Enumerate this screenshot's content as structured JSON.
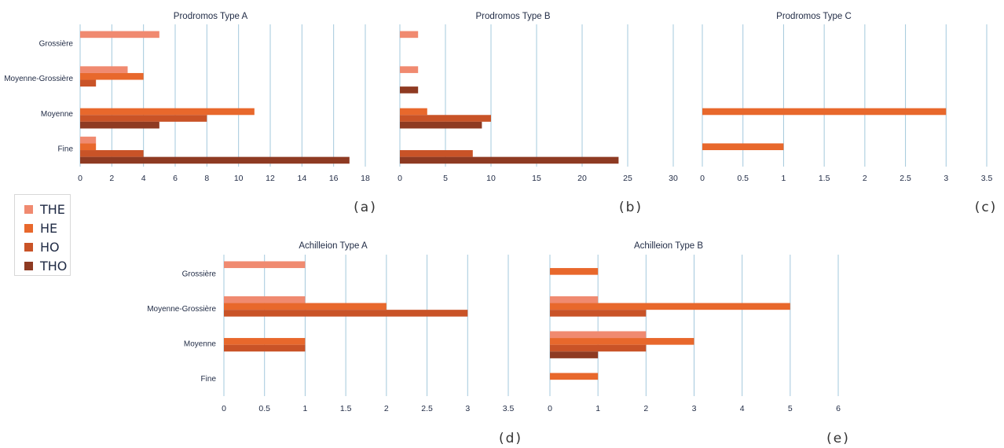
{
  "series_colors": {
    "THE": "#f08a70",
    "HE": "#e8682c",
    "HO": "#c95327",
    "THO": "#8e3a22"
  },
  "gridline_color": "#a3c8dc",
  "legend": {
    "placement": "left",
    "items": [
      {
        "label": "THE",
        "color": "#f08a70"
      },
      {
        "label": "HE",
        "color": "#e8682c"
      },
      {
        "label": "HO",
        "color": "#c95327"
      },
      {
        "label": "THO",
        "color": "#8e3a22"
      }
    ]
  },
  "chart_data": [
    {
      "type": "bar",
      "orientation": "horizontal",
      "title": "Prodromos Type A",
      "panel_label": "(a)",
      "categories": [
        "Grossière",
        "Moyenne-Grossière",
        "Moyenne",
        "Fine"
      ],
      "xticks": [
        "0",
        "2",
        "4",
        "6",
        "8",
        "10",
        "12",
        "14",
        "16",
        "18"
      ],
      "xlim": [
        0,
        18
      ],
      "grid": true,
      "series": [
        {
          "name": "THE",
          "values": [
            5,
            3,
            0,
            1
          ]
        },
        {
          "name": "HE",
          "values": [
            0,
            4,
            11,
            1
          ]
        },
        {
          "name": "HO",
          "values": [
            0,
            1,
            8,
            4
          ]
        },
        {
          "name": "THO",
          "values": [
            0,
            0,
            5,
            17
          ]
        }
      ]
    },
    {
      "type": "bar",
      "orientation": "horizontal",
      "title": "Prodromos Type B",
      "panel_label": "(b)",
      "categories": [
        "Grossière",
        "Moyenne-Grossière",
        "Moyenne",
        "Fine"
      ],
      "xticks": [
        "0",
        "5",
        "10",
        "15",
        "20",
        "25",
        "30"
      ],
      "xlim": [
        0,
        30
      ],
      "grid": true,
      "series": [
        {
          "name": "THE",
          "values": [
            2,
            2,
            0,
            0
          ]
        },
        {
          "name": "HE",
          "values": [
            0,
            0,
            3,
            0
          ]
        },
        {
          "name": "HO",
          "values": [
            0,
            0,
            10,
            8
          ]
        },
        {
          "name": "THO",
          "values": [
            0,
            2,
            9,
            24
          ]
        }
      ]
    },
    {
      "type": "bar",
      "orientation": "horizontal",
      "title": "Prodromos Type C",
      "panel_label": "(c)",
      "categories": [
        "Grossière",
        "Moyenne-Grossière",
        "Moyenne",
        "Fine"
      ],
      "xticks": [
        "0",
        "0.5",
        "1",
        "1.5",
        "2",
        "2.5",
        "3",
        "3.5"
      ],
      "xlim": [
        0,
        3.5
      ],
      "grid": true,
      "series": [
        {
          "name": "THE",
          "values": [
            0,
            0,
            0,
            0
          ]
        },
        {
          "name": "HE",
          "values": [
            0,
            0,
            3,
            1
          ]
        },
        {
          "name": "HO",
          "values": [
            0,
            0,
            0,
            0
          ]
        },
        {
          "name": "THO",
          "values": [
            0,
            0,
            0,
            0
          ]
        }
      ]
    },
    {
      "type": "bar",
      "orientation": "horizontal",
      "title": "Achilleion Type A",
      "panel_label": "(d)",
      "categories": [
        "Grossière",
        "Moyenne-Grossière",
        "Moyenne",
        "Fine"
      ],
      "xticks": [
        "0",
        "0.5",
        "1",
        "1.5",
        "2",
        "2.5",
        "3",
        "3.5"
      ],
      "xlim": [
        0,
        3.5
      ],
      "grid": true,
      "series": [
        {
          "name": "THE",
          "values": [
            1,
            1,
            0,
            0
          ]
        },
        {
          "name": "HE",
          "values": [
            0,
            2,
            1,
            0
          ]
        },
        {
          "name": "HO",
          "values": [
            0,
            3,
            1,
            0
          ]
        },
        {
          "name": "THO",
          "values": [
            0,
            0,
            0,
            0
          ]
        }
      ]
    },
    {
      "type": "bar",
      "orientation": "horizontal",
      "title": "Achilleion Type B",
      "panel_label": "(e)",
      "categories": [
        "Grossière",
        "Moyenne-Grossière",
        "Moyenne",
        "Fine"
      ],
      "xticks": [
        "0",
        "1",
        "2",
        "3",
        "4",
        "5",
        "6"
      ],
      "xlim": [
        0,
        6
      ],
      "grid": true,
      "series": [
        {
          "name": "THE",
          "values": [
            0,
            1,
            2,
            0
          ]
        },
        {
          "name": "HE",
          "values": [
            1,
            5,
            3,
            1
          ]
        },
        {
          "name": "HO",
          "values": [
            0,
            2,
            2,
            0
          ]
        },
        {
          "name": "THO",
          "values": [
            0,
            0,
            1,
            0
          ]
        }
      ]
    }
  ]
}
